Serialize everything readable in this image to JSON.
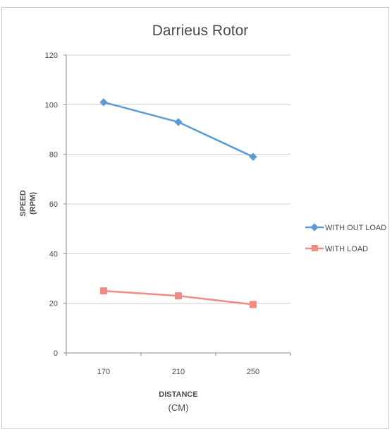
{
  "chart_data": {
    "type": "line",
    "title": "Darrieus Rotor",
    "xlabel": [
      "DISTANCE",
      "(CM)"
    ],
    "ylabel": [
      "SPEED",
      "(RPM)"
    ],
    "categories": [
      "170",
      "210",
      "250"
    ],
    "ylim": [
      0,
      120
    ],
    "yticks": [
      0,
      20,
      40,
      60,
      80,
      100,
      120
    ],
    "grid": true,
    "legend_position": "right",
    "series": [
      {
        "name": "WITH OUT LOAD",
        "values": [
          101,
          93,
          79
        ],
        "color": "#5b9bd5",
        "marker": "diamond"
      },
      {
        "name": "WITH LOAD",
        "values": [
          25,
          23,
          19.5
        ],
        "color": "#f08c84",
        "marker": "square"
      }
    ]
  }
}
